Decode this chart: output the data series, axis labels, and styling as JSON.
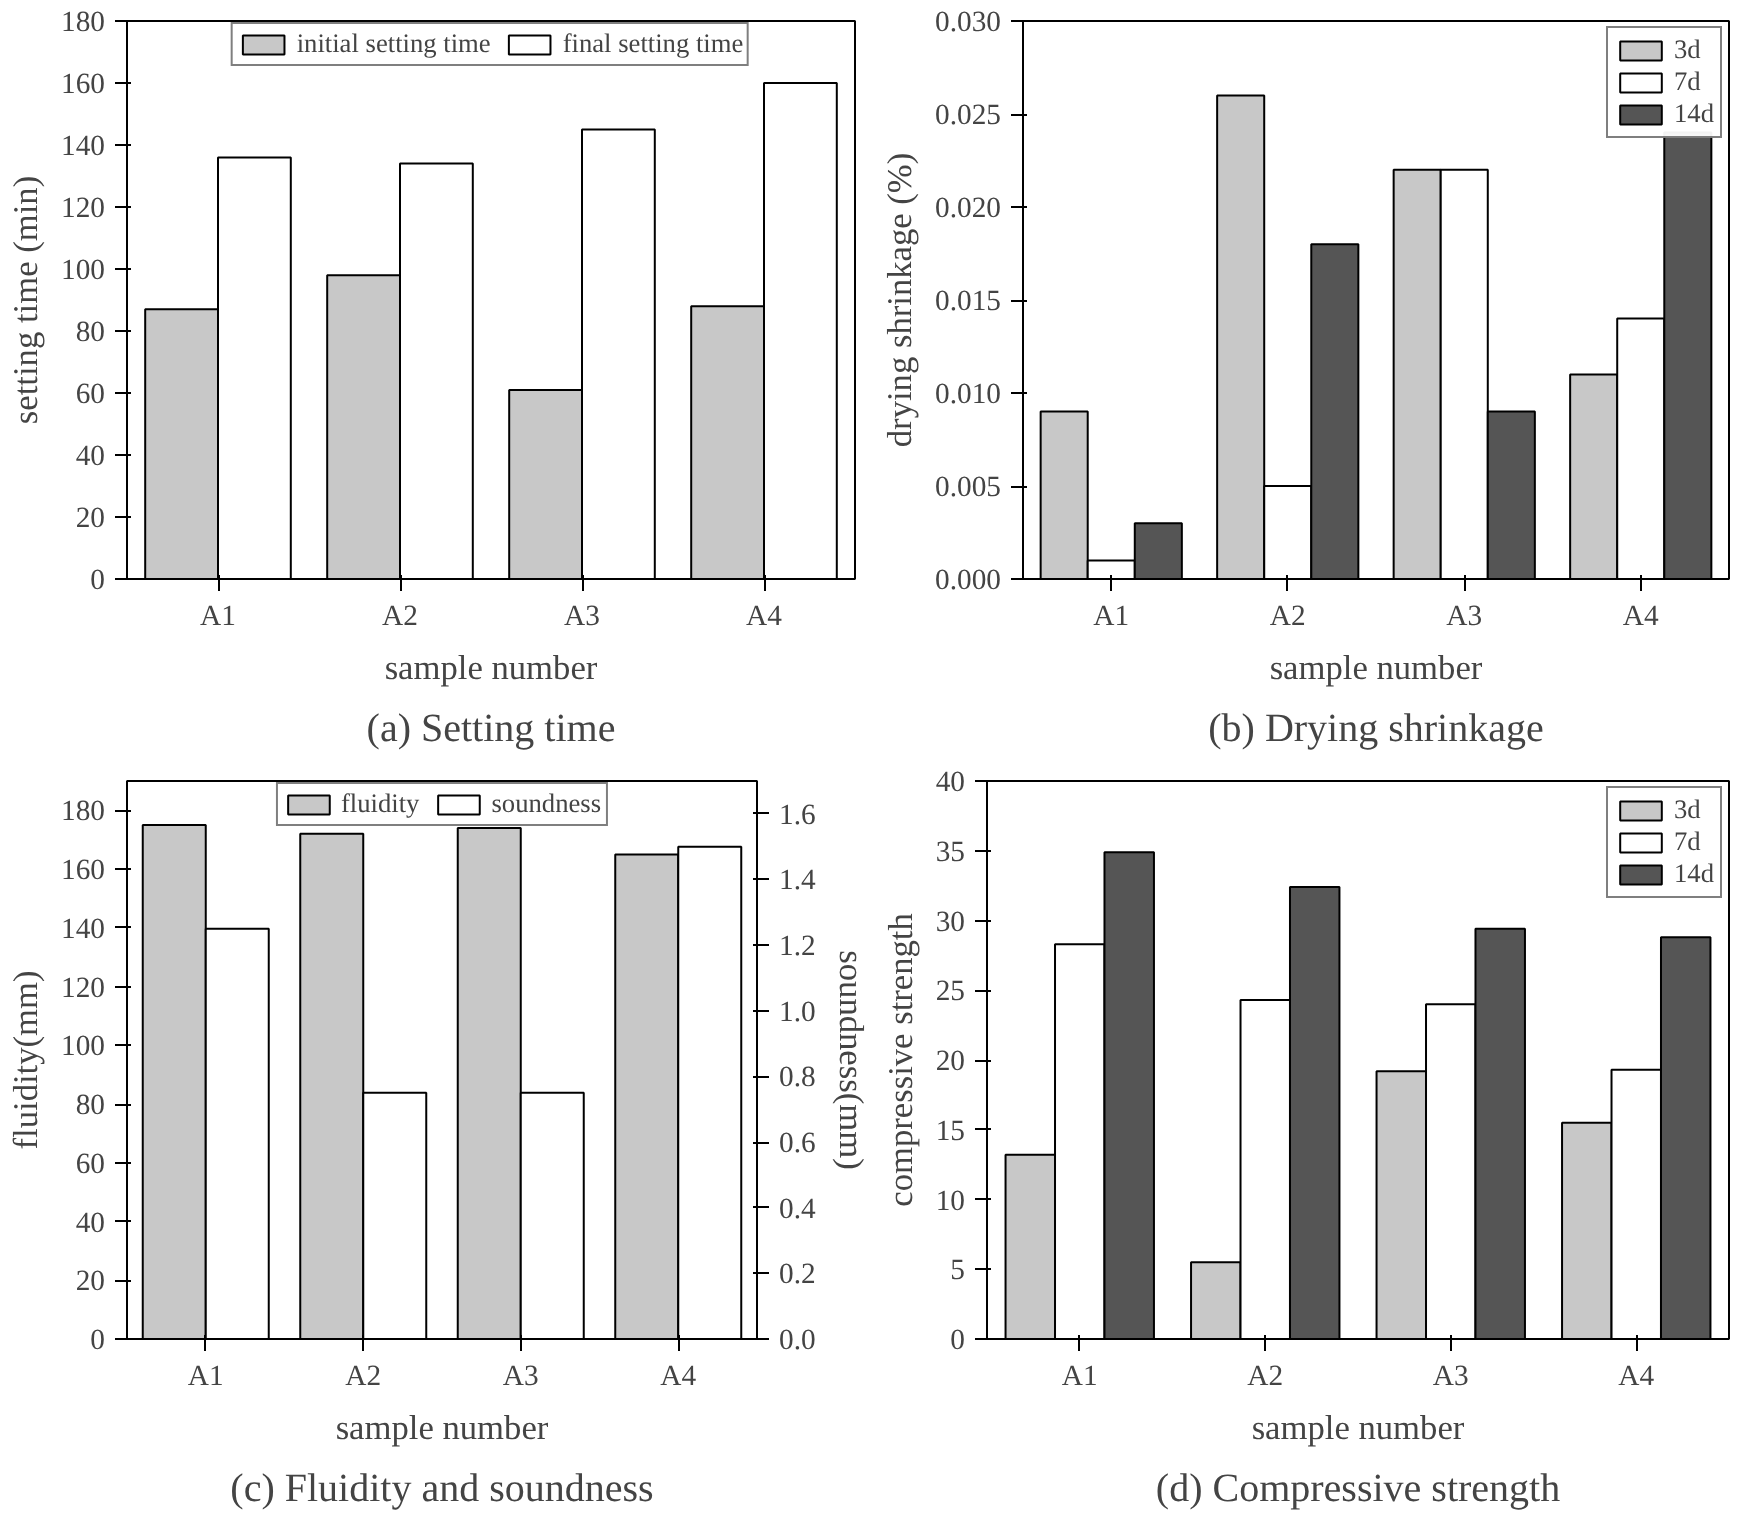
{
  "chart_data": [
    {
      "type": "bar",
      "title": "(a) Setting time",
      "xlabel": "sample number",
      "ylabel": "setting time (min)",
      "categories": [
        "A1",
        "A2",
        "A3",
        "A4"
      ],
      "ylim": [
        0,
        180
      ],
      "yticks": [
        0,
        20,
        40,
        60,
        80,
        100,
        120,
        140,
        160,
        180
      ],
      "legend": "top",
      "grid": false,
      "series": [
        {
          "name": "initial setting time",
          "color": "#c8c8c8",
          "values": [
            87,
            98,
            61,
            88
          ]
        },
        {
          "name": "final setting time",
          "color": "#ffffff",
          "values": [
            136,
            134,
            145,
            160
          ]
        }
      ]
    },
    {
      "type": "bar",
      "title": "(b) Drying shrinkage",
      "xlabel": "sample number",
      "ylabel": "drying shrinkage (%)",
      "categories": [
        "A1",
        "A2",
        "A3",
        "A4"
      ],
      "ylim": [
        0,
        0.03
      ],
      "yticks": [
        {
          "value": 0,
          "label": "0.000"
        },
        {
          "value": 0.005,
          "label": "0.005"
        },
        {
          "value": 0.01,
          "label": "0.010"
        },
        {
          "value": 0.015,
          "label": "0.015"
        },
        {
          "value": 0.02,
          "label": "0.020"
        },
        {
          "value": 0.025,
          "label": "0.025"
        },
        {
          "value": 0.03,
          "label": "0.030"
        }
      ],
      "legend": "top right",
      "grid": false,
      "series": [
        {
          "name": "3d",
          "color": "#c8c8c8",
          "values": [
            0.009,
            0.026,
            0.022,
            0.011
          ]
        },
        {
          "name": "7d",
          "color": "#ffffff",
          "values": [
            0.001,
            0.005,
            0.022,
            0.014
          ]
        },
        {
          "name": "14d",
          "color": "#555555",
          "values": [
            0.003,
            0.018,
            0.009,
            0.024
          ]
        }
      ]
    },
    {
      "type": "bar",
      "title": "(c) Fluidity and soundness",
      "xlabel": "sample number",
      "ylabel": "fluidity(mm)",
      "y2label": "soundness(mm)",
      "categories": [
        "A1",
        "A2",
        "A3",
        "A4"
      ],
      "ylim": [
        0,
        190
      ],
      "yticks": [
        0,
        20,
        40,
        60,
        80,
        100,
        120,
        140,
        160,
        180
      ],
      "y2lim": [
        0,
        1.7
      ],
      "y2ticks": [
        {
          "value": 0,
          "label": "0.0"
        },
        {
          "value": 0.2,
          "label": "0.2"
        },
        {
          "value": 0.4,
          "label": "0.4"
        },
        {
          "value": 0.6,
          "label": "0.6"
        },
        {
          "value": 0.8,
          "label": "0.8"
        },
        {
          "value": 1.0,
          "label": "1.0"
        },
        {
          "value": 1.2,
          "label": "1.2"
        },
        {
          "value": 1.4,
          "label": "1.4"
        },
        {
          "value": 1.6,
          "label": "1.6"
        }
      ],
      "legend": "top",
      "grid": false,
      "series": [
        {
          "name": "fluidity",
          "color": "#c8c8c8",
          "values": [
            175,
            172,
            174,
            165
          ]
        },
        {
          "name": "soundness",
          "color": "#ffffff",
          "axis": "y2",
          "values": [
            1.25,
            0.75,
            0.75,
            1.5
          ]
        }
      ]
    },
    {
      "type": "bar",
      "title": "(d) Compressive strength",
      "xlabel": "sample number",
      "ylabel": "compressive strength",
      "categories": [
        "A1",
        "A2",
        "A3",
        "A4"
      ],
      "ylim": [
        0,
        40
      ],
      "yticks": [
        0,
        5,
        10,
        15,
        20,
        25,
        30,
        35,
        40
      ],
      "legend": "top right",
      "grid": false,
      "series": [
        {
          "name": "3d",
          "color": "#c8c8c8",
          "values": [
            13.2,
            5.5,
            19.2,
            15.5
          ]
        },
        {
          "name": "7d",
          "color": "#ffffff",
          "values": [
            28.3,
            24.3,
            24.0,
            19.3
          ]
        },
        {
          "name": "14d",
          "color": "#555555",
          "values": [
            34.9,
            32.4,
            29.4,
            28.8
          ]
        }
      ]
    }
  ]
}
